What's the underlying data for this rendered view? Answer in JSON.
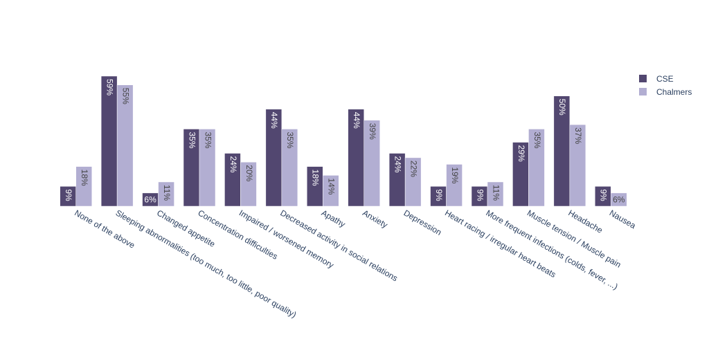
{
  "chart_data": {
    "type": "bar",
    "categories": [
      "None of the above",
      "Sleeping abnormalities (too much, too little, poor quality)",
      "Changed appetite",
      "Concentration difficulties",
      "Impaired / worsened memory",
      "Decreased  activity in social relations",
      "Apathy",
      "Anxiety",
      "Depression",
      "Heart racing / irregular heart beats",
      "More frequent infections (colds, fever, ...)",
      "Muscle tension / Muscle pain",
      "Headache",
      "Nausea"
    ],
    "series": [
      {
        "name": "CSE",
        "color": "#524770",
        "values": [
          9,
          59,
          6,
          35,
          24,
          44,
          18,
          44,
          24,
          9,
          9,
          29,
          50,
          9
        ],
        "labels": [
          "9%",
          "59%",
          "6%",
          "35%",
          "24%",
          "44%",
          "18%",
          "44%",
          "24%",
          "9%",
          "9%",
          "29%",
          "50%",
          "9%"
        ]
      },
      {
        "name": "Chalmers",
        "color": "#b2aed2",
        "values": [
          18,
          55,
          11,
          35,
          20,
          35,
          14,
          39,
          22,
          19,
          11,
          35,
          37,
          6
        ],
        "labels": [
          "18%",
          "55%",
          "11%",
          "35%",
          "20%",
          "35%",
          "14%",
          "39%",
          "22%",
          "19%",
          "11%",
          "35%",
          "37%",
          "6%"
        ]
      }
    ],
    "ylim": [
      0,
      59
    ],
    "grid": false,
    "legend": "top-right"
  }
}
